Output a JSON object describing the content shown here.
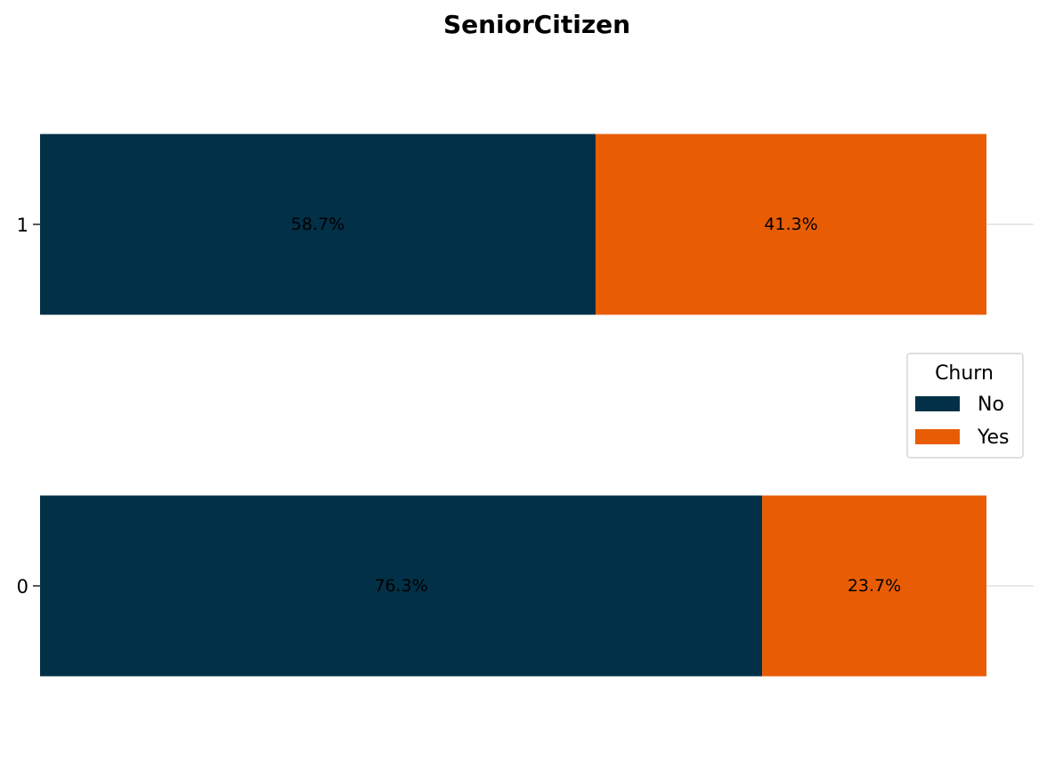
{
  "chart_data": {
    "type": "bar",
    "orientation": "horizontal",
    "stacked": true,
    "title": "SeniorCitizen",
    "xlabel": "",
    "ylabel": "",
    "categories": [
      "1",
      "0"
    ],
    "xlim": [
      0,
      100
    ],
    "series": [
      {
        "name": "No",
        "color": "#023047",
        "values": [
          58.7,
          76.3
        ],
        "labels": [
          "58.7%",
          "76.3%"
        ]
      },
      {
        "name": "Yes",
        "color": "#E85D04",
        "values": [
          41.3,
          23.7
        ],
        "labels": [
          "41.3%",
          "23.7%"
        ]
      }
    ],
    "legend": {
      "title": "Churn",
      "position": "center-right"
    },
    "grid": {
      "y": true,
      "x": false
    }
  }
}
